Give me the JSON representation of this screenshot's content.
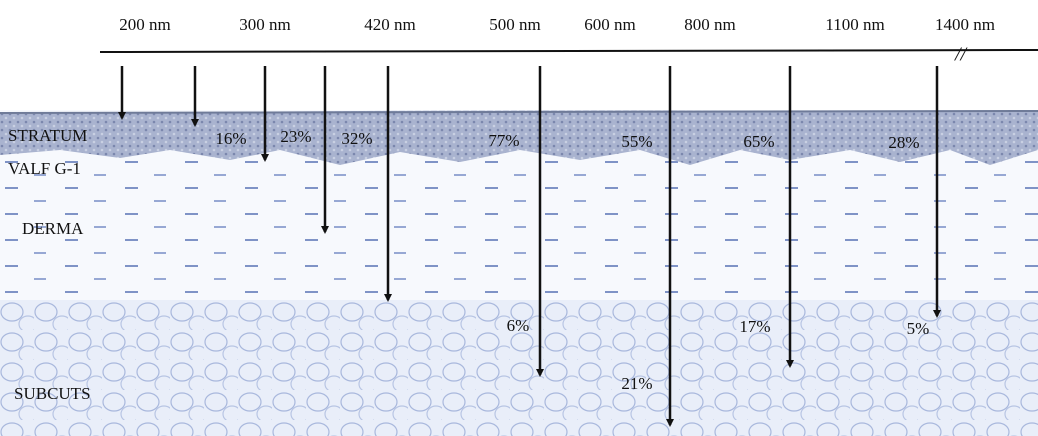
{
  "wavelengths": [
    "200 nm",
    "300 nm",
    "420 nm",
    "500 nm",
    "600 nm",
    "800 nm",
    "1100 nm",
    "1400 nm"
  ],
  "layers": [
    "STRATUM",
    "VALF G-1",
    "DERMA",
    "SUBCUTS"
  ],
  "surface_percentages": [
    "16%",
    "23%",
    "32%",
    "77%",
    "55%",
    "65%",
    "28%"
  ],
  "deep_percentages": [
    "6%",
    "21%",
    "17%",
    "5%"
  ]
}
